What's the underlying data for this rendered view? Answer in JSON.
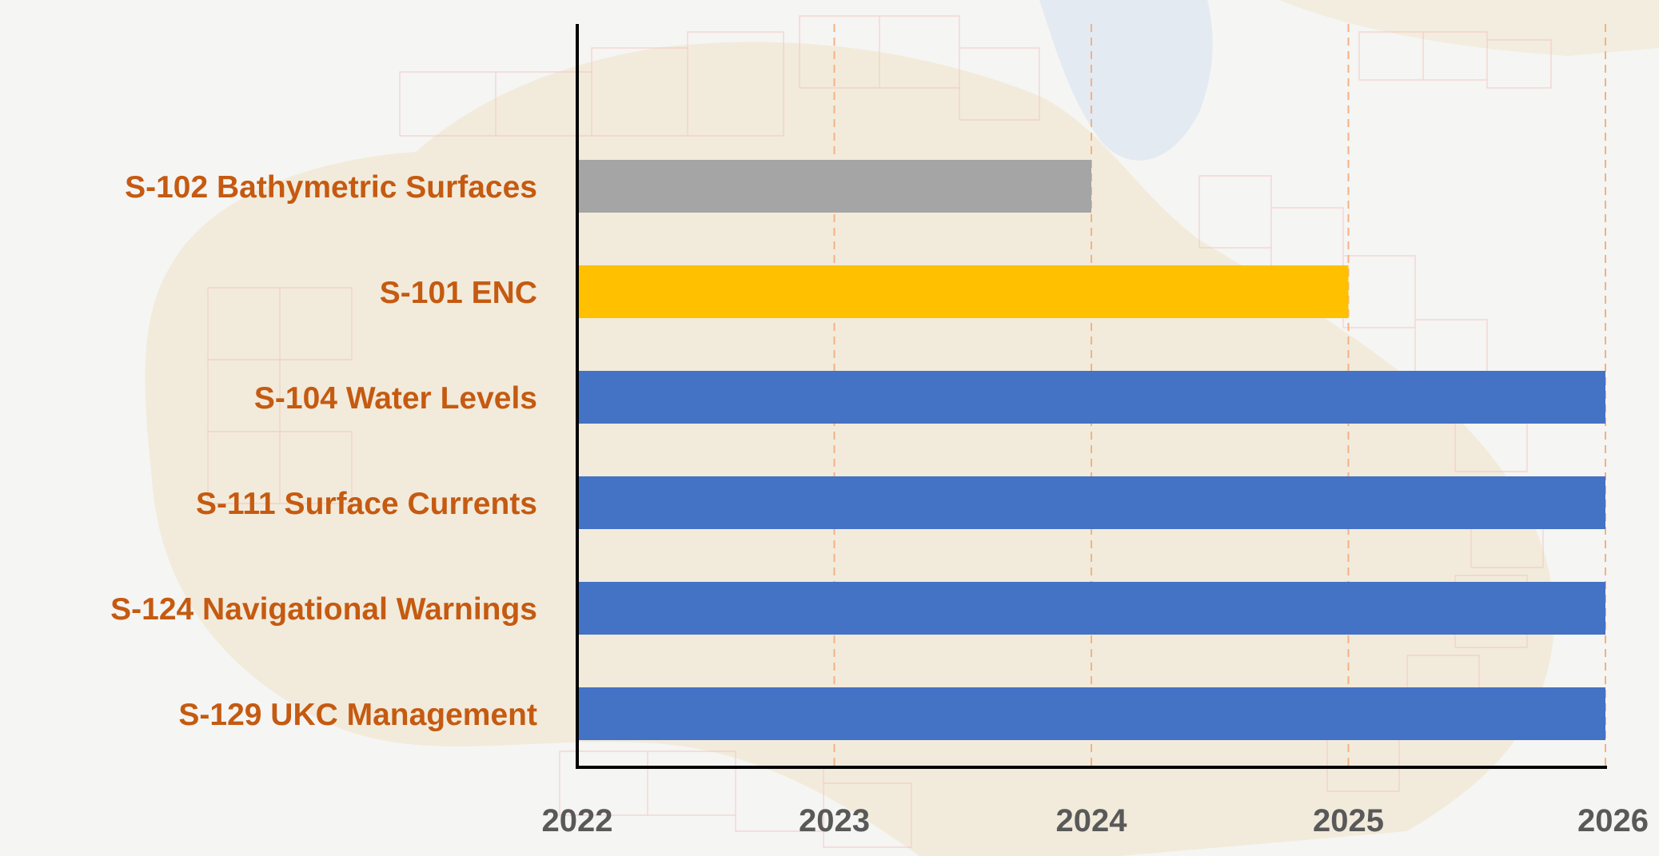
{
  "chart_data": {
    "type": "bar",
    "orientation": "horizontal",
    "title": "",
    "xlabel": "",
    "ylabel": "",
    "xlim": [
      2022,
      2026
    ],
    "xticks": [
      "2022",
      "2023",
      "2024",
      "2025",
      "2026"
    ],
    "grid": "vertical dashed",
    "legend": "none",
    "categories": [
      "S-102 Bathymetric Surfaces",
      "S-101 ENC",
      "S-104 Water Levels",
      "S-111 Surface Currents",
      "S-124 Navigational Warnings",
      "S-129 UKC Management"
    ],
    "values": [
      2024,
      2025,
      2026,
      2026,
      2026,
      2026
    ],
    "bar_colors": [
      "#a5a5a5",
      "#ffc000",
      "#4472c4",
      "#4472c4",
      "#4472c4",
      "#4472c4"
    ],
    "label_color": "#c55a11",
    "tick_label_color": "#595959",
    "grid_color": "#f4b183"
  }
}
